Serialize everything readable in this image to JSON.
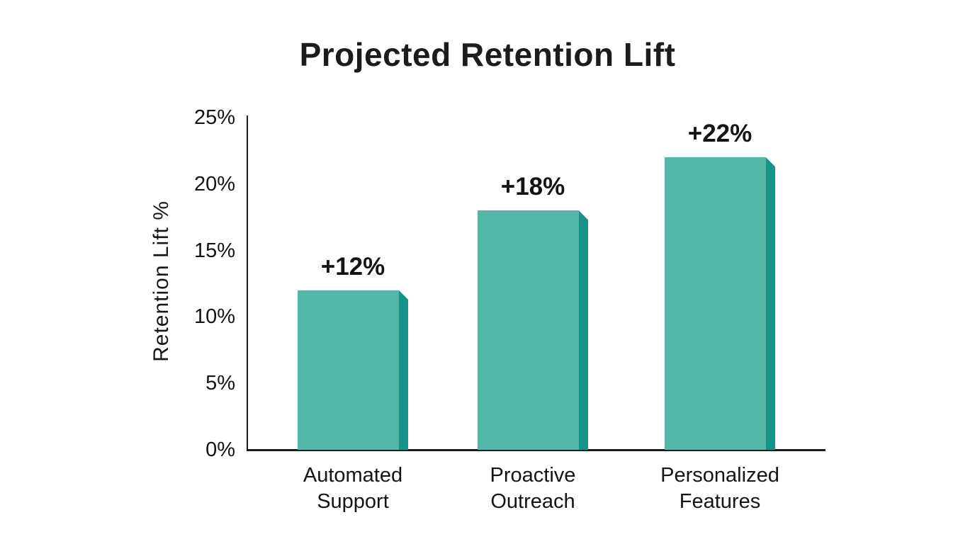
{
  "page": {
    "background": "#ffffff"
  },
  "chart_data": {
    "type": "bar",
    "title": "Projected Retention Lift",
    "xlabel": "",
    "ylabel": "Retention Lift %",
    "categories": [
      "Automated Support",
      "Proactive Outreach",
      "Personalized Features"
    ],
    "values": [
      12,
      18,
      22
    ],
    "value_labels": [
      "+12%",
      "+18%",
      "+22%"
    ],
    "y_ticks": [
      {
        "value": 0,
        "label": "0%"
      },
      {
        "value": 5,
        "label": "5%"
      },
      {
        "value": 10,
        "label": "10%"
      },
      {
        "value": 15,
        "label": "15%"
      },
      {
        "value": 20,
        "label": "20%"
      },
      {
        "value": 25,
        "label": "25%"
      }
    ],
    "ylim": [
      0,
      25
    ],
    "grid": false,
    "legend": null,
    "colors": {
      "bar_fill": "#54b6a6",
      "bar_side": "#16948a",
      "axis": "#1a1a1a",
      "text": "#141414",
      "background": "#ffffff"
    }
  }
}
